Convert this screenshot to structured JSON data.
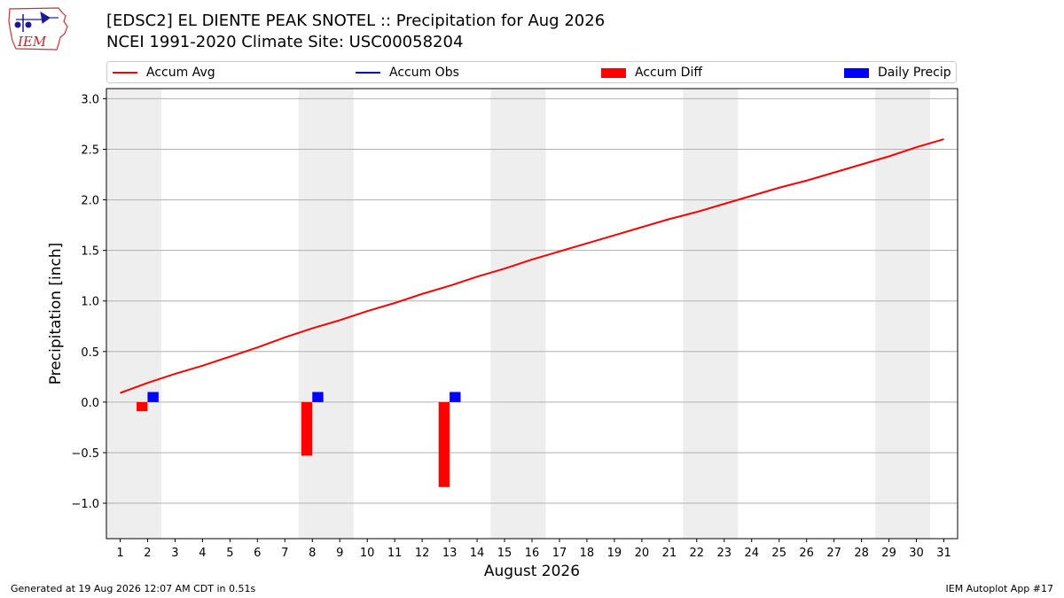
{
  "header": {
    "title_line1": "[EDSC2] EL DIENTE PEAK SNOTEL :: Precipitation for Aug 2026",
    "title_line2": "NCEI 1991-2020 Climate Site: USC00058204",
    "logo_text": "IEM"
  },
  "legend": {
    "items": [
      {
        "label": "Accum Avg",
        "color": "#ff0000",
        "kind": "line"
      },
      {
        "label": "Accum Obs",
        "color": "#0000ff",
        "kind": "line"
      },
      {
        "label": "Accum Diff",
        "color": "#ff0000",
        "kind": "box"
      },
      {
        "label": "Daily Precip",
        "color": "#0000ff",
        "kind": "box"
      }
    ]
  },
  "footer": {
    "generated": "Generated at 19 Aug 2026 12:07 AM CDT in 0.51s",
    "app": "IEM Autoplot App #17"
  },
  "chart_data": {
    "type": "bar",
    "xlabel": "August 2026",
    "ylabel": "Precipitation [inch]",
    "xlim": [
      0.5,
      31.5
    ],
    "ylim": [
      -1.35,
      3.1
    ],
    "yticks": [
      3.0,
      2.5,
      2.0,
      1.5,
      1.0,
      0.5,
      0.0,
      -0.5,
      -1.0
    ],
    "ytick_labels": [
      "3.0",
      "2.5",
      "2.0",
      "1.5",
      "1.0",
      "0.5",
      "0.0",
      "−0.5",
      "−1.0"
    ],
    "xticks": [
      1,
      2,
      3,
      4,
      5,
      6,
      7,
      8,
      9,
      10,
      11,
      12,
      13,
      14,
      15,
      16,
      17,
      18,
      19,
      20,
      21,
      22,
      23,
      24,
      25,
      26,
      27,
      28,
      29,
      30,
      31
    ],
    "grid": "y",
    "weekend_shading": [
      [
        0.5,
        2.5
      ],
      [
        7.5,
        9.5
      ],
      [
        14.5,
        16.5
      ],
      [
        21.5,
        23.5
      ],
      [
        28.5,
        30.5
      ]
    ],
    "shade_color": "#eeeeee",
    "series": [
      {
        "name": "Accum Avg",
        "kind": "line",
        "color": "#ff0000",
        "x": [
          1,
          2,
          3,
          4,
          5,
          6,
          7,
          8,
          9,
          10,
          11,
          12,
          13,
          14,
          15,
          16,
          17,
          18,
          19,
          20,
          21,
          22,
          23,
          24,
          25,
          26,
          27,
          28,
          29,
          30,
          31
        ],
        "values": [
          0.09,
          0.19,
          0.28,
          0.36,
          0.45,
          0.54,
          0.64,
          0.73,
          0.81,
          0.9,
          0.98,
          1.07,
          1.15,
          1.24,
          1.32,
          1.41,
          1.49,
          1.57,
          1.65,
          1.73,
          1.81,
          1.88,
          1.96,
          2.04,
          2.12,
          2.19,
          2.27,
          2.35,
          2.43,
          2.52,
          2.6
        ]
      },
      {
        "name": "Accum Diff",
        "kind": "bar",
        "color": "#ff0000",
        "x": [
          2,
          8,
          13
        ],
        "values": [
          -0.09,
          -0.53,
          -0.84
        ]
      },
      {
        "name": "Daily Precip",
        "kind": "bar",
        "color": "#0000ff",
        "x": [
          2,
          8,
          13
        ],
        "values": [
          0.1,
          0.1,
          0.1
        ]
      }
    ]
  }
}
